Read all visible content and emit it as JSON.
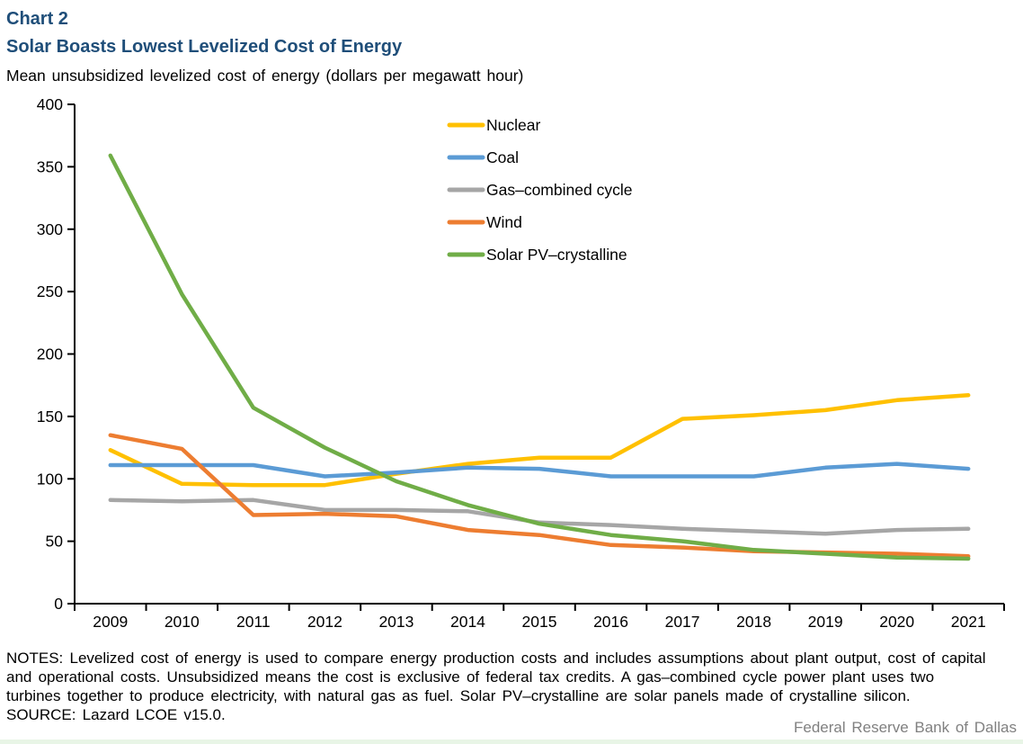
{
  "header": {
    "chart_label": "Chart 2",
    "title": "Solar Boasts Lowest Levelized Cost of Energy",
    "subtitle": "Mean unsubsidized levelized cost of energy (dollars per megawatt hour)"
  },
  "chart_data": {
    "type": "line",
    "title": "Solar Boasts Lowest Levelized Cost of Energy",
    "ylabel": "Mean unsubsidized levelized cost of energy (dollars per megawatt hour)",
    "xlabel": "",
    "x": [
      "2009",
      "2010",
      "2011",
      "2012",
      "2013",
      "2014",
      "2015",
      "2016",
      "2017",
      "2018",
      "2019",
      "2020",
      "2021"
    ],
    "ylim": [
      0,
      400
    ],
    "ytick_step": 50,
    "grid": false,
    "legend_position": "inside-top-center",
    "series": [
      {
        "name": "Nuclear",
        "color": "#FFC000",
        "values": [
          123,
          96,
          95,
          95,
          104,
          112,
          117,
          117,
          148,
          151,
          155,
          163,
          167
        ]
      },
      {
        "name": "Coal",
        "color": "#5B9BD5",
        "values": [
          111,
          111,
          111,
          102,
          105,
          109,
          108,
          102,
          102,
          102,
          109,
          112,
          108
        ]
      },
      {
        "name": "Gas–combined cycle",
        "color": "#A6A6A6",
        "values": [
          83,
          82,
          83,
          75,
          75,
          74,
          65,
          63,
          60,
          58,
          56,
          59,
          60
        ]
      },
      {
        "name": "Wind",
        "color": "#ED7D31",
        "values": [
          135,
          124,
          71,
          72,
          70,
          59,
          55,
          47,
          45,
          42,
          41,
          40,
          38
        ]
      },
      {
        "name": "Solar PV–crystalline",
        "color": "#70AD47",
        "values": [
          359,
          248,
          157,
          125,
          98,
          79,
          64,
          55,
          50,
          43,
          40,
          37,
          36
        ]
      }
    ]
  },
  "notes": {
    "lines": [
      "NOTES: Levelized cost of energy is used to compare energy production costs and includes assumptions about plant output, cost of capital",
      "and operational costs. Unsubsidized means the cost is exclusive of federal tax credits. A gas–combined cycle power plant uses two",
      "turbines together to produce electricity, with natural gas as fuel. Solar PV–crystalline are solar panels made of crystalline silicon.",
      "SOURCE: Lazard LCOE v15.0."
    ]
  },
  "footer": {
    "attribution": "Federal Reserve Bank of Dallas"
  },
  "colors": {
    "title_text": "#1F4E79",
    "axis": "#000000",
    "footer_text": "#808080",
    "bottom_bar": "#E8F5E6"
  }
}
